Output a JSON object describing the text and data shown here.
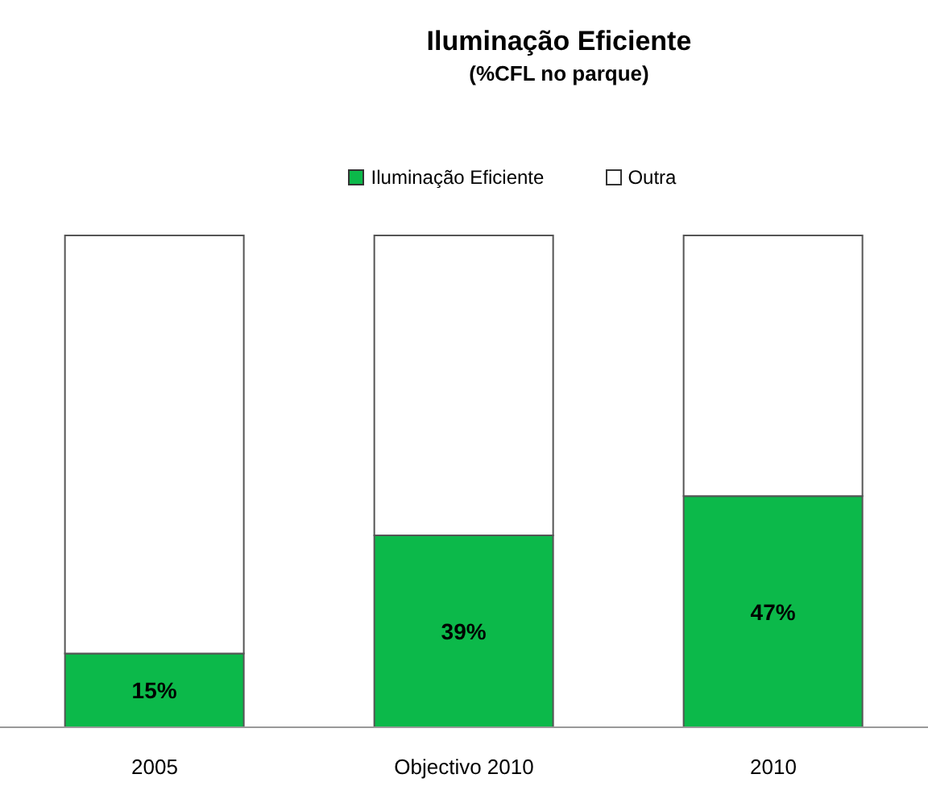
{
  "chart_data": {
    "type": "bar",
    "title": "Iluminação Eficiente",
    "subtitle": "(%CFL no parque)",
    "categories": [
      "2005",
      "Objectivo 2010",
      "2010"
    ],
    "stacked": true,
    "legend": "top",
    "series": [
      {
        "name": "Iluminação Eficiente",
        "color": "#0cb94a",
        "values": [
          15,
          39,
          47
        ],
        "value_labels": [
          "15%",
          "39%",
          "47%"
        ]
      },
      {
        "name": "Outra",
        "color": "#ffffff",
        "values": [
          85,
          61,
          53
        ]
      }
    ]
  }
}
